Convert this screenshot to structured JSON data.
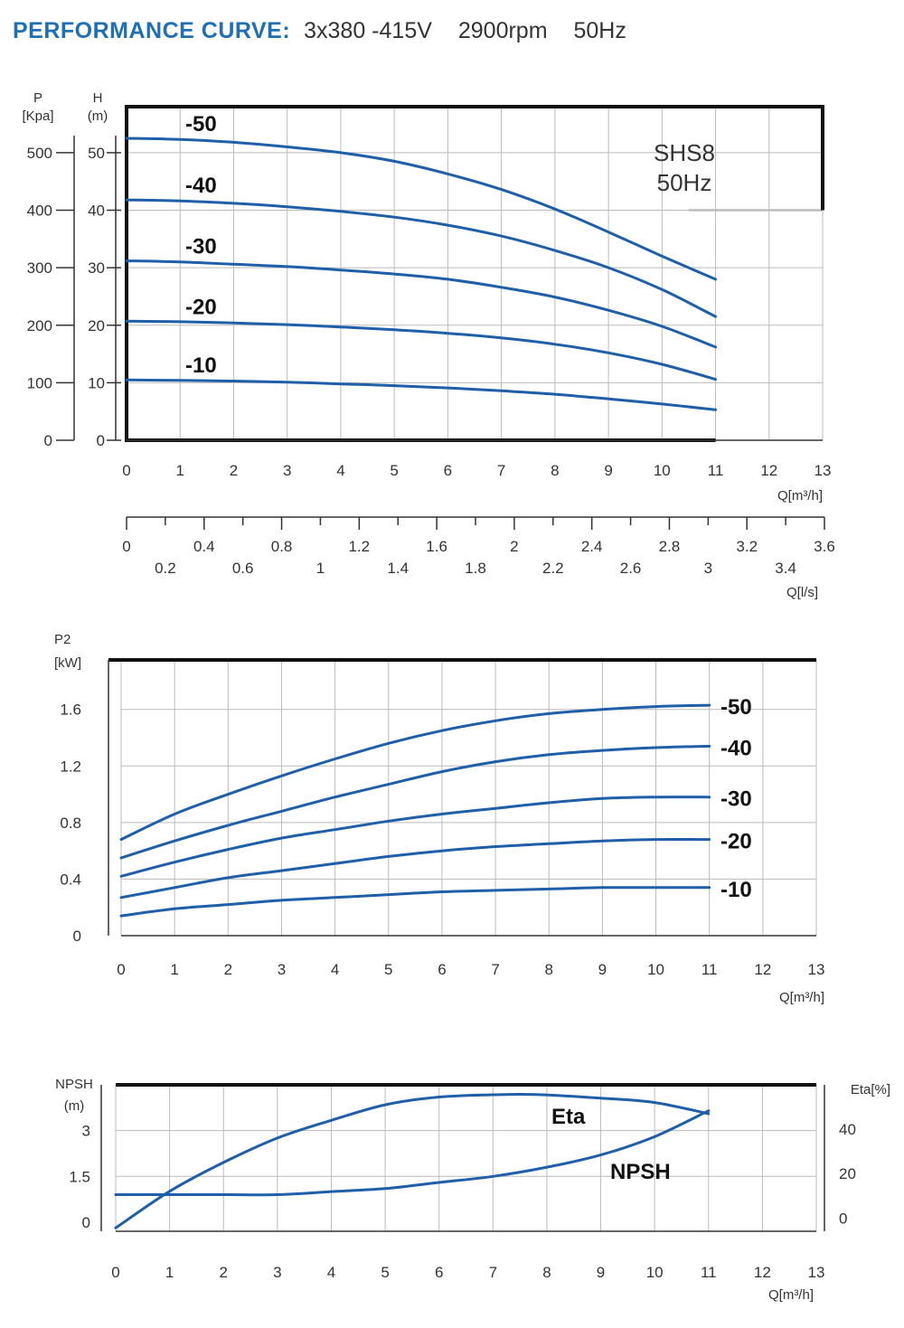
{
  "header": {
    "label": "PERFORMANCE CURVE:",
    "specs": [
      "3x380 -415V",
      "2900rpm",
      "50Hz"
    ]
  },
  "chart_data": [
    {
      "id": "head",
      "type": "line",
      "model": [
        "SHS8",
        "50Hz"
      ],
      "x_label": "Q[m³/h]",
      "x_ticks": [
        "0",
        "1",
        "2",
        "3",
        "4",
        "5",
        "6",
        "7",
        "8",
        "9",
        "10",
        "11",
        "12",
        "13"
      ],
      "xlim": [
        0,
        13
      ],
      "y_label_p": [
        "P",
        "[Kpa]"
      ],
      "y_label_h": [
        "H",
        "(m)"
      ],
      "p_ticks": [
        "0",
        "100",
        "200",
        "300",
        "400",
        "500"
      ],
      "h_ticks": [
        "0",
        "10",
        "20",
        "30",
        "40",
        "50"
      ],
      "ylim": [
        0,
        58
      ],
      "colors": {
        "curve": "#1f5ea8"
      },
      "series": [
        {
          "name": "-50",
          "x": [
            0,
            1,
            2,
            3,
            4,
            5,
            6,
            7,
            8,
            9,
            10,
            11
          ],
          "values": [
            52.5,
            52.3,
            51.8,
            51,
            50,
            48.5,
            46.3,
            43.6,
            40.2,
            36.2,
            32,
            28
          ]
        },
        {
          "name": "-40",
          "x": [
            0,
            1,
            2,
            3,
            4,
            5,
            6,
            7,
            8,
            9,
            10,
            11
          ],
          "values": [
            41.8,
            41.6,
            41.2,
            40.6,
            39.8,
            38.8,
            37.4,
            35.5,
            33,
            30,
            26.2,
            21.5
          ]
        },
        {
          "name": "-30",
          "x": [
            0,
            1,
            2,
            3,
            4,
            5,
            6,
            7,
            8,
            9,
            10,
            11
          ],
          "values": [
            31.2,
            31,
            30.6,
            30.2,
            29.6,
            28.9,
            28,
            26.6,
            24.9,
            22.6,
            19.8,
            16.2
          ]
        },
        {
          "name": "-20",
          "x": [
            0,
            1,
            2,
            3,
            4,
            5,
            6,
            7,
            8,
            9,
            10,
            11
          ],
          "values": [
            20.7,
            20.6,
            20.4,
            20.1,
            19.7,
            19.2,
            18.6,
            17.8,
            16.7,
            15.2,
            13.2,
            10.6
          ]
        },
        {
          "name": "-10",
          "x": [
            0,
            1,
            2,
            3,
            4,
            5,
            6,
            7,
            8,
            9,
            10,
            11
          ],
          "values": [
            10.5,
            10.4,
            10.3,
            10.1,
            9.8,
            9.5,
            9.1,
            8.6,
            8,
            7.2,
            6.3,
            5.3
          ]
        }
      ],
      "secondary_axis": {
        "label": "Q[l/s]",
        "upper_ticks": [
          "0",
          "0.4",
          "0.8",
          "1.2",
          "1.6",
          "2",
          "2.4",
          "2.8",
          "3.2",
          "3.6"
        ],
        "lower_ticks": [
          "0.2",
          "0.6",
          "1",
          "1.4",
          "1.8",
          "2.2",
          "2.6",
          "3",
          "3.4"
        ],
        "xlim": [
          0,
          3.6
        ]
      }
    },
    {
      "id": "power",
      "type": "line",
      "x_label": "Q[m³/h]",
      "x_ticks": [
        "0",
        "1",
        "2",
        "3",
        "4",
        "5",
        "6",
        "7",
        "8",
        "9",
        "10",
        "11",
        "12",
        "13"
      ],
      "xlim": [
        0,
        13
      ],
      "y_label": [
        "P2",
        "[kW]"
      ],
      "y_ticks": [
        "0",
        "0.4",
        "0.8",
        "1.2",
        "1.6"
      ],
      "ylim": [
        0,
        1.95
      ],
      "series": [
        {
          "name": "-50",
          "x": [
            0,
            1,
            2,
            3,
            4,
            5,
            6,
            7,
            8,
            9,
            10,
            11
          ],
          "values": [
            0.68,
            0.86,
            1.0,
            1.13,
            1.25,
            1.36,
            1.45,
            1.52,
            1.57,
            1.6,
            1.62,
            1.63
          ]
        },
        {
          "name": "-40",
          "x": [
            0,
            1,
            2,
            3,
            4,
            5,
            6,
            7,
            8,
            9,
            10,
            11
          ],
          "values": [
            0.55,
            0.67,
            0.78,
            0.88,
            0.98,
            1.07,
            1.16,
            1.23,
            1.28,
            1.31,
            1.33,
            1.34
          ]
        },
        {
          "name": "-30",
          "x": [
            0,
            1,
            2,
            3,
            4,
            5,
            6,
            7,
            8,
            9,
            10,
            11
          ],
          "values": [
            0.42,
            0.52,
            0.61,
            0.69,
            0.75,
            0.81,
            0.86,
            0.9,
            0.94,
            0.97,
            0.98,
            0.98
          ]
        },
        {
          "name": "-20",
          "x": [
            0,
            1,
            2,
            3,
            4,
            5,
            6,
            7,
            8,
            9,
            10,
            11
          ],
          "values": [
            0.27,
            0.34,
            0.41,
            0.46,
            0.51,
            0.56,
            0.6,
            0.63,
            0.65,
            0.67,
            0.68,
            0.68
          ]
        },
        {
          "name": "-10",
          "x": [
            0,
            1,
            2,
            3,
            4,
            5,
            6,
            7,
            8,
            9,
            10,
            11
          ],
          "values": [
            0.14,
            0.19,
            0.22,
            0.25,
            0.27,
            0.29,
            0.31,
            0.32,
            0.33,
            0.34,
            0.34,
            0.34
          ]
        }
      ]
    },
    {
      "id": "npsh",
      "type": "line",
      "x_label": "Q[m³/h]",
      "x_ticks": [
        "0",
        "1",
        "2",
        "3",
        "4",
        "5",
        "6",
        "7",
        "8",
        "9",
        "10",
        "11",
        "12",
        "13"
      ],
      "xlim": [
        0,
        13
      ],
      "y_label_left": [
        "NPSH",
        "(m)"
      ],
      "left_ticks": [
        "0",
        "1.5",
        "3"
      ],
      "ylim_left": [
        -0.3,
        4.5
      ],
      "y_label_right": "Eta[%]",
      "right_ticks": [
        "0",
        "20",
        "40"
      ],
      "ylim_right": [
        -6,
        60
      ],
      "series": [
        {
          "name": "Eta",
          "axis": "right",
          "x": [
            0,
            1,
            2,
            3,
            4,
            5,
            6,
            7,
            7.8,
            9,
            10,
            11
          ],
          "values": [
            -4.5,
            12,
            25,
            36,
            44,
            51,
            54.5,
            55.5,
            55.6,
            54,
            52,
            47
          ]
        },
        {
          "name": "NPSH",
          "axis": "left",
          "x": [
            0,
            1,
            2,
            3,
            4,
            5,
            6,
            7,
            8,
            9,
            10,
            11
          ],
          "values": [
            0.9,
            0.9,
            0.9,
            0.9,
            1.0,
            1.1,
            1.3,
            1.5,
            1.8,
            2.2,
            2.8,
            3.65
          ]
        }
      ]
    }
  ]
}
